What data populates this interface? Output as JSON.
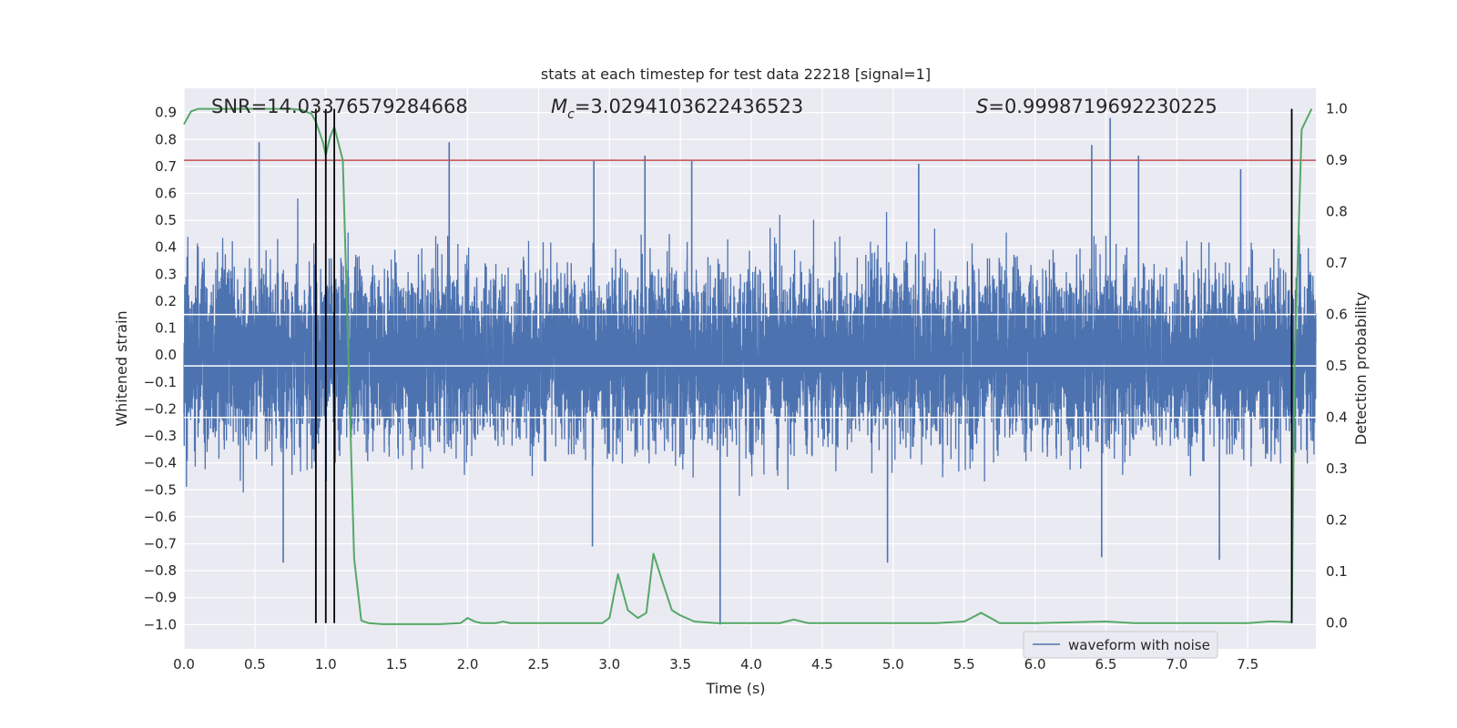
{
  "chart_data": {
    "type": "line",
    "title": "stats at each timestep for test data 22218 [signal=1]",
    "xlabel": "Time (s)",
    "ylabel_left": "Whitened strain",
    "ylabel_right": "Detection probability",
    "xlim": [
      0.0,
      7.98
    ],
    "ylim_left": [
      -1.09,
      0.99
    ],
    "ylim_right": [
      -0.05,
      1.04
    ],
    "x_ticks": [
      "0.0",
      "0.5",
      "1.0",
      "1.5",
      "2.0",
      "2.5",
      "3.0",
      "3.5",
      "4.0",
      "4.5",
      "5.0",
      "5.5",
      "6.0",
      "6.5",
      "7.0",
      "7.5"
    ],
    "x_tick_values": [
      0.0,
      0.5,
      1.0,
      1.5,
      2.0,
      2.5,
      3.0,
      3.5,
      4.0,
      4.5,
      5.0,
      5.5,
      6.0,
      6.5,
      7.0,
      7.5
    ],
    "y_left_ticks": [
      "0.9",
      "0.8",
      "0.7",
      "0.6",
      "0.5",
      "0.4",
      "0.3",
      "0.2",
      "0.1",
      "0.0",
      "−0.1",
      "−0.2",
      "−0.3",
      "−0.4",
      "−0.5",
      "−0.6",
      "−0.7",
      "−0.8",
      "−0.9",
      "−1.0"
    ],
    "y_left_tick_values": [
      0.9,
      0.8,
      0.7,
      0.6,
      0.5,
      0.4,
      0.3,
      0.2,
      0.1,
      0.0,
      -0.1,
      -0.2,
      -0.3,
      -0.4,
      -0.5,
      -0.6,
      -0.7,
      -0.8,
      -0.9,
      -1.0
    ],
    "y_right_ticks": [
      "1.0",
      "0.9",
      "0.8",
      "0.7",
      "0.6",
      "0.5",
      "0.4",
      "0.3",
      "0.2",
      "0.1",
      "0.0"
    ],
    "y_right_tick_values": [
      1.0,
      0.9,
      0.8,
      0.7,
      0.6,
      0.5,
      0.4,
      0.3,
      0.2,
      0.1,
      0.0
    ],
    "annotations": {
      "snr": "SNR=14.03376579284668",
      "mc_symbol": "M",
      "mc_sub": "c",
      "mc_value": "=3.0294103622436523",
      "s_symbol": "S",
      "s_value": "=0.9998719692230225"
    },
    "threshold": {
      "value": 0.9,
      "axis": "right",
      "color": "#c44e52"
    },
    "vertical_lines": [
      0.93,
      1.0,
      1.06,
      7.81
    ],
    "waveform": {
      "name": "waveform with noise",
      "color": "#4c72b0",
      "band_typical": 0.3,
      "band_max": 0.62,
      "spikes_up": [
        [
          0.53,
          0.79
        ],
        [
          1.87,
          0.79
        ],
        [
          2.89,
          0.72
        ],
        [
          3.25,
          0.74
        ],
        [
          3.58,
          0.72
        ],
        [
          5.18,
          0.71
        ],
        [
          6.4,
          0.78
        ],
        [
          6.53,
          0.88
        ],
        [
          6.73,
          0.74
        ],
        [
          7.45,
          0.69
        ]
      ],
      "spikes_down": [
        [
          0.7,
          -0.77
        ],
        [
          2.88,
          -0.71
        ],
        [
          3.78,
          -1.0
        ],
        [
          4.96,
          -0.77
        ],
        [
          6.47,
          -0.75
        ],
        [
          7.3,
          -0.76
        ]
      ]
    },
    "detection_probability": {
      "name": "detection probability",
      "color": "#55a868",
      "x": [
        0.0,
        0.05,
        0.1,
        0.2,
        0.5,
        0.75,
        0.83,
        0.9,
        0.93,
        0.98,
        1.0,
        1.03,
        1.06,
        1.12,
        1.2,
        1.25,
        1.3,
        1.4,
        1.5,
        1.8,
        1.95,
        2.0,
        2.05,
        2.1,
        2.2,
        2.25,
        2.3,
        2.5,
        2.95,
        3.0,
        3.06,
        3.13,
        3.2,
        3.26,
        3.31,
        3.38,
        3.44,
        3.5,
        3.6,
        3.75,
        3.9,
        4.0,
        4.2,
        4.3,
        4.4,
        4.6,
        5.0,
        5.3,
        5.5,
        5.55,
        5.62,
        5.7,
        5.75,
        6.0,
        6.5,
        6.7,
        7.0,
        7.5,
        7.65,
        7.7,
        7.8,
        7.81,
        7.83,
        7.88,
        7.95
      ],
      "y": [
        0.97,
        0.995,
        1.0,
        1.0,
        1.0,
        1.0,
        0.998,
        0.99,
        0.975,
        0.935,
        0.91,
        0.945,
        0.965,
        0.9,
        0.125,
        0.005,
        0.0,
        -0.002,
        -0.002,
        -0.002,
        0.0,
        0.01,
        0.003,
        0.0,
        0.0,
        0.003,
        0.0,
        0.0,
        0.0,
        0.01,
        0.095,
        0.025,
        0.01,
        0.02,
        0.135,
        0.075,
        0.025,
        0.015,
        0.003,
        0.0,
        0.0,
        0.0,
        0.0,
        0.007,
        0.0,
        0.0,
        0.0,
        0.0,
        0.003,
        0.01,
        0.02,
        0.008,
        0.0,
        0.0,
        0.003,
        0.0,
        0.0,
        0.0,
        0.003,
        0.003,
        0.002,
        0.003,
        0.5,
        0.96,
        1.0
      ]
    },
    "legend": {
      "label": "waveform with noise",
      "position": "lower-right"
    }
  }
}
